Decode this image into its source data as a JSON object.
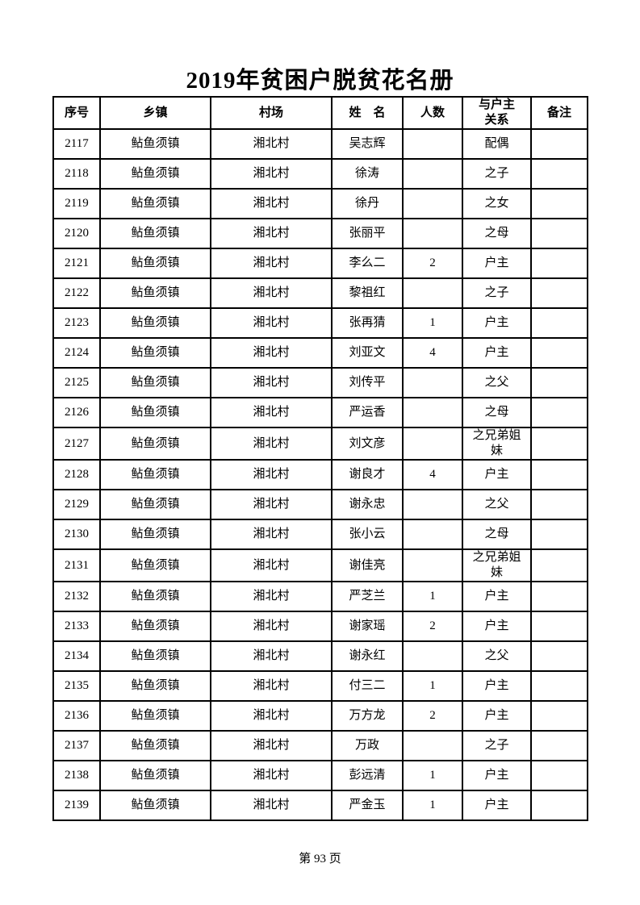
{
  "page": {
    "title": "2019年贫困户脱贫花名册",
    "footer": "第 93 页"
  },
  "table": {
    "headers": {
      "index": "序号",
      "township": "乡镇",
      "village": "村场",
      "name": "姓　名",
      "count": "人数",
      "relation": "与户主关系",
      "remark": "备注"
    },
    "rows": [
      {
        "index": "2117",
        "township": "鲇鱼须镇",
        "village": "湘北村",
        "name": "吴志辉",
        "count": "",
        "relation": "配偶",
        "remark": ""
      },
      {
        "index": "2118",
        "township": "鲇鱼须镇",
        "village": "湘北村",
        "name": "徐涛",
        "count": "",
        "relation": "之子",
        "remark": ""
      },
      {
        "index": "2119",
        "township": "鲇鱼须镇",
        "village": "湘北村",
        "name": "徐丹",
        "count": "",
        "relation": "之女",
        "remark": ""
      },
      {
        "index": "2120",
        "township": "鲇鱼须镇",
        "village": "湘北村",
        "name": "张丽平",
        "count": "",
        "relation": "之母",
        "remark": ""
      },
      {
        "index": "2121",
        "township": "鲇鱼须镇",
        "village": "湘北村",
        "name": "李么二",
        "count": "2",
        "relation": "户主",
        "remark": ""
      },
      {
        "index": "2122",
        "township": "鲇鱼须镇",
        "village": "湘北村",
        "name": "黎祖红",
        "count": "",
        "relation": "之子",
        "remark": ""
      },
      {
        "index": "2123",
        "township": "鲇鱼须镇",
        "village": "湘北村",
        "name": "张再猜",
        "count": "1",
        "relation": "户主",
        "remark": ""
      },
      {
        "index": "2124",
        "township": "鲇鱼须镇",
        "village": "湘北村",
        "name": "刘亚文",
        "count": "4",
        "relation": "户主",
        "remark": ""
      },
      {
        "index": "2125",
        "township": "鲇鱼须镇",
        "village": "湘北村",
        "name": "刘传平",
        "count": "",
        "relation": "之父",
        "remark": ""
      },
      {
        "index": "2126",
        "township": "鲇鱼须镇",
        "village": "湘北村",
        "name": "严运香",
        "count": "",
        "relation": "之母",
        "remark": ""
      },
      {
        "index": "2127",
        "township": "鲇鱼须镇",
        "village": "湘北村",
        "name": "刘文彦",
        "count": "",
        "relation": "之兄弟姐妹",
        "remark": ""
      },
      {
        "index": "2128",
        "township": "鲇鱼须镇",
        "village": "湘北村",
        "name": "谢良才",
        "count": "4",
        "relation": "户主",
        "remark": ""
      },
      {
        "index": "2129",
        "township": "鲇鱼须镇",
        "village": "湘北村",
        "name": "谢永忠",
        "count": "",
        "relation": "之父",
        "remark": ""
      },
      {
        "index": "2130",
        "township": "鲇鱼须镇",
        "village": "湘北村",
        "name": "张小云",
        "count": "",
        "relation": "之母",
        "remark": ""
      },
      {
        "index": "2131",
        "township": "鲇鱼须镇",
        "village": "湘北村",
        "name": "谢佳亮",
        "count": "",
        "relation": "之兄弟姐妹",
        "remark": ""
      },
      {
        "index": "2132",
        "township": "鲇鱼须镇",
        "village": "湘北村",
        "name": "严芝兰",
        "count": "1",
        "relation": "户主",
        "remark": ""
      },
      {
        "index": "2133",
        "township": "鲇鱼须镇",
        "village": "湘北村",
        "name": "谢家瑶",
        "count": "2",
        "relation": "户主",
        "remark": ""
      },
      {
        "index": "2134",
        "township": "鲇鱼须镇",
        "village": "湘北村",
        "name": "谢永红",
        "count": "",
        "relation": "之父",
        "remark": ""
      },
      {
        "index": "2135",
        "township": "鲇鱼须镇",
        "village": "湘北村",
        "name": "付三二",
        "count": "1",
        "relation": "户主",
        "remark": ""
      },
      {
        "index": "2136",
        "township": "鲇鱼须镇",
        "village": "湘北村",
        "name": "万方龙",
        "count": "2",
        "relation": "户主",
        "remark": ""
      },
      {
        "index": "2137",
        "township": "鲇鱼须镇",
        "village": "湘北村",
        "name": "万政",
        "count": "",
        "relation": "之子",
        "remark": ""
      },
      {
        "index": "2138",
        "township": "鲇鱼须镇",
        "village": "湘北村",
        "name": "彭远清",
        "count": "1",
        "relation": "户主",
        "remark": ""
      },
      {
        "index": "2139",
        "township": "鲇鱼须镇",
        "village": "湘北村",
        "name": "严金玉",
        "count": "1",
        "relation": "户主",
        "remark": ""
      }
    ]
  }
}
